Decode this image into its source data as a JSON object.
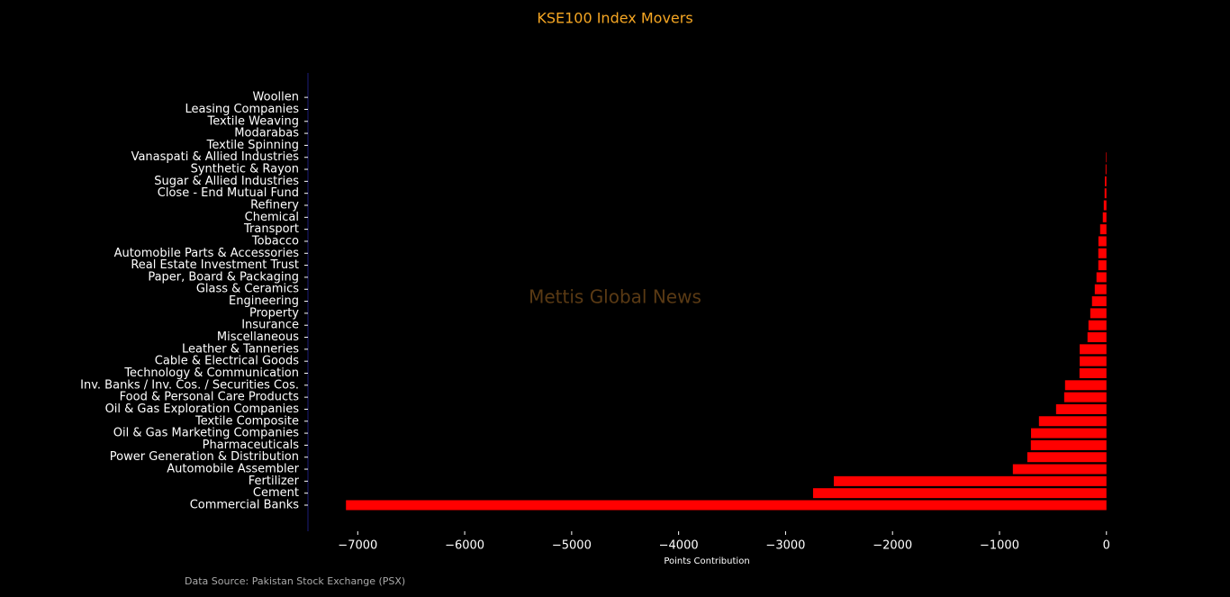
{
  "chart_data": {
    "type": "barh",
    "title": "KSE100 Index Movers",
    "xlabel": "Points Contribution",
    "watermark": "Mettis Global News",
    "source": "Data Source: Pakistan Stock Exchange (PSX)",
    "color": "#ff0000",
    "categories": [
      "Commercial Banks",
      "Cement",
      "Fertilizer",
      "Automobile Assembler",
      "Power Generation & Distribution",
      "Pharmaceuticals",
      "Oil & Gas Marketing Companies",
      "Textile Composite",
      "Oil & Gas Exploration Companies",
      "Food & Personal Care Products",
      "Inv. Banks / Inv. Cos. / Securities Cos.",
      "Technology & Communication",
      "Cable & Electrical Goods",
      "Leather & Tanneries",
      "Miscellaneous",
      "Insurance",
      "Property",
      "Engineering",
      "Glass & Ceramics",
      "Paper, Board & Packaging",
      "Real Estate Investment Trust",
      "Automobile Parts & Accessories",
      "Tobacco",
      "Transport",
      "Chemical",
      "Refinery",
      "Close - End Mutual Fund",
      "Sugar & Allied Industries",
      "Synthetic & Rayon",
      "Vanaspati & Allied Industries",
      "Textile Spinning",
      "Modarabas",
      "Textile Weaving",
      "Leasing Companies",
      "Woollen"
    ],
    "values": [
      -7110,
      -2743,
      -2549,
      -875,
      -740,
      -707,
      -705,
      -631,
      -471,
      -395,
      -387,
      -252,
      -250,
      -250,
      -177,
      -168,
      -151,
      -135,
      -109,
      -93,
      -76,
      -76,
      -75,
      -59,
      -34,
      -25,
      -17,
      -15,
      -8,
      -5,
      0,
      0,
      0,
      0,
      0
    ],
    "xlim": [
      -7465.5,
      355.5
    ],
    "xticks": [
      {
        "value": -7000,
        "label": "−7000"
      },
      {
        "value": -6000,
        "label": "−6000"
      },
      {
        "value": -5000,
        "label": "−5000"
      },
      {
        "value": -4000,
        "label": "−4000"
      },
      {
        "value": -3000,
        "label": "−3000"
      },
      {
        "value": -2000,
        "label": "−2000"
      },
      {
        "value": -1000,
        "label": "−1000"
      },
      0
    ]
  }
}
